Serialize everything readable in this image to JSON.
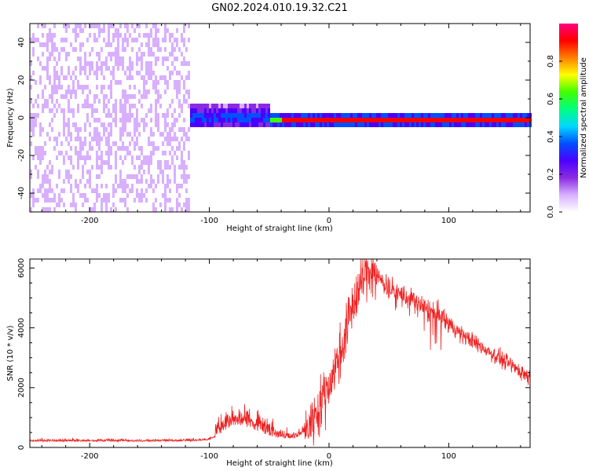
{
  "title": "GN02.2024.010.19.32.C21",
  "chart_data": [
    {
      "type": "heatmap",
      "xlabel": "Height of straight line (km)",
      "ylabel": "Frequency (Hz)",
      "xlim": [
        -250,
        168
      ],
      "ylim": [
        -50,
        50
      ],
      "x_ticks": [
        -200,
        -100,
        0,
        100
      ],
      "y_ticks": [
        -40,
        -20,
        0,
        20,
        40
      ],
      "grid": false,
      "colorbar": {
        "label": "Normalized spectral amplitude",
        "range": [
          0,
          1
        ],
        "ticks": [
          0.0,
          0.2,
          0.4,
          0.6,
          0.8
        ],
        "colors": [
          "#ffffff",
          "#d8b0ff",
          "#8a2be2",
          "#4b00ff",
          "#0050ff",
          "#00d8ff",
          "#00ff80",
          "#40ff00",
          "#ffff00",
          "#ff8000",
          "#ff0000",
          "#ff0080"
        ]
      },
      "regions": [
        {
          "x_from": -250,
          "x_to": -117,
          "description_level": "broadband noise",
          "amplitude": 0.12
        },
        {
          "x_from": -117,
          "x_to": -50,
          "signal_spread_hz": [
            -5,
            8
          ],
          "amplitude": 0.35
        },
        {
          "x_from": -50,
          "x_to": 168,
          "signal_spread_hz": [
            -1,
            1
          ],
          "amplitude": 0.95
        }
      ]
    },
    {
      "type": "line",
      "xlabel": "Height of straight line (km)",
      "ylabel": "SNR (10 * v/v)",
      "xlim": [
        -250,
        168
      ],
      "ylim": [
        0,
        6300
      ],
      "x_ticks": [
        -200,
        -100,
        0,
        100
      ],
      "y_ticks": [
        0,
        2000,
        4000,
        6000
      ],
      "grid": false,
      "series": [
        {
          "color": "#ee2222",
          "points": [
            [
              -250,
              200
            ],
            [
              -200,
              200
            ],
            [
              -150,
              200
            ],
            [
              -110,
              210
            ],
            [
              -100,
              250
            ],
            [
              -90,
              450
            ],
            [
              -80,
              750
            ],
            [
              -70,
              700
            ],
            [
              -60,
              550
            ],
            [
              -50,
              380
            ],
            [
              -40,
              320
            ],
            [
              -30,
              280
            ],
            [
              -20,
              500
            ],
            [
              -10,
              1200
            ],
            [
              0,
              2100
            ],
            [
              10,
              3200
            ],
            [
              20,
              4800
            ],
            [
              30,
              5800
            ],
            [
              35,
              6000
            ],
            [
              40,
              5700
            ],
            [
              50,
              5350
            ],
            [
              60,
              5100
            ],
            [
              70,
              4900
            ],
            [
              80,
              4650
            ],
            [
              90,
              4450
            ],
            [
              100,
              4150
            ],
            [
              110,
              3800
            ],
            [
              120,
              3550
            ],
            [
              130,
              3300
            ],
            [
              140,
              3050
            ],
            [
              150,
              2800
            ],
            [
              160,
              2550
            ],
            [
              168,
              2350
            ]
          ]
        }
      ]
    }
  ]
}
